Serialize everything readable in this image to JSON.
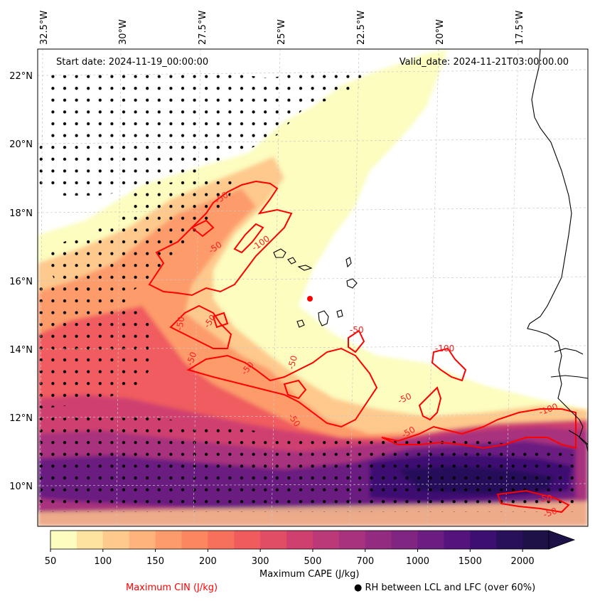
{
  "header": {
    "start_date": "Start date: 2024-11-19_00:00:00",
    "valid_date": "Valid_date: 2024-11-21T03:00:00.00"
  },
  "map": {
    "lon_labels": [
      "32.5°W",
      "30°W",
      "27.5°W",
      "25°W",
      "22.5°W",
      "20°W",
      "17.5°W"
    ],
    "lat_labels": [
      "22°N",
      "20°N",
      "18°N",
      "16°N",
      "14°N",
      "12°N",
      "10°N"
    ],
    "cin_contour_labels": [
      "-50",
      "-50",
      "-100",
      "-50",
      "-50",
      "-50",
      "-50",
      "-50",
      "-50",
      "-50",
      "-100",
      "-50",
      "-50",
      "-100",
      "-50",
      "-50"
    ]
  },
  "colorbar": {
    "ticks": [
      "50",
      "100",
      "150",
      "200",
      "300",
      "500",
      "700",
      "1000",
      "1500",
      "2000"
    ],
    "colors": [
      "#fcfdbf",
      "#fde2a0",
      "#fec98d",
      "#feb37c",
      "#fd9b6b",
      "#fb8660",
      "#f7705c",
      "#f05c5e",
      "#e24d66",
      "#cf406f",
      "#bb3978",
      "#a8327d",
      "#932b80",
      "#802582",
      "#6b1d81",
      "#55137d",
      "#3e0f72",
      "#28115a",
      "#1d1147"
    ],
    "label": "Maximum CAPE (J/kg)"
  },
  "legend": {
    "cin_label": "Maximum CIN (J/kg)",
    "cin_color": "#ff0000",
    "rh_label": "RH between LCL and LFC (over 60%)",
    "rh_marker": "●"
  }
}
